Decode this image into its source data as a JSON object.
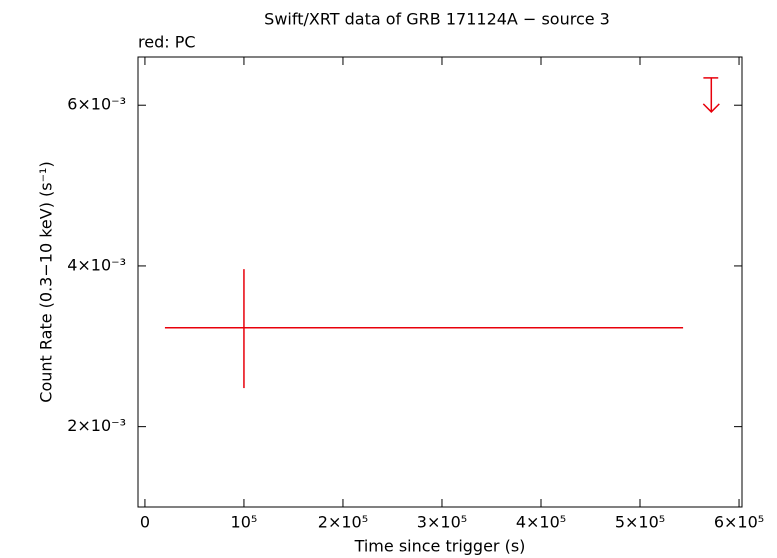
{
  "chart_data": {
    "type": "errorbar",
    "title": "Swift/XRT data of GRB 171124A − source 3",
    "subtitle": "red: PC",
    "x_label": "Time since trigger (s)",
    "y_label": "Count Rate (0.3−10 keV) (s⁻¹)",
    "xlim": [
      -7000,
      603000
    ],
    "ylim": [
      0.001,
      0.0066
    ],
    "xticks": [
      0,
      {
        "value": 100000,
        "label": "10⁵"
      },
      {
        "value": 200000,
        "label": "2×10⁵"
      },
      {
        "value": 300000,
        "label": "3×10⁵"
      },
      {
        "value": 400000,
        "label": "4×10⁵"
      },
      {
        "value": 500000,
        "label": "5×10⁵"
      },
      {
        "value": 600000,
        "label": "6×10⁵"
      }
    ],
    "yticks": [
      {
        "value": 0.002,
        "label": "2×10⁻³"
      },
      {
        "value": 0.004,
        "label": "4×10⁻³"
      },
      {
        "value": 0.006,
        "label": "6×10⁻³"
      }
    ],
    "series": [
      {
        "color": "#e8000b",
        "x": [
          100000
        ],
        "x_low": [
          20200
        ],
        "x_high": [
          543500
        ],
        "values": [
          0.00323
        ],
        "y_low": [
          0.00248
        ],
        "y_high": [
          0.00396
        ]
      }
    ],
    "upper_limits": {
      "color": "#e8000b",
      "x": [
        572000
      ],
      "x_low": [
        564000
      ],
      "x_high": [
        579000
      ],
      "values": [
        0.00634
      ]
    }
  }
}
